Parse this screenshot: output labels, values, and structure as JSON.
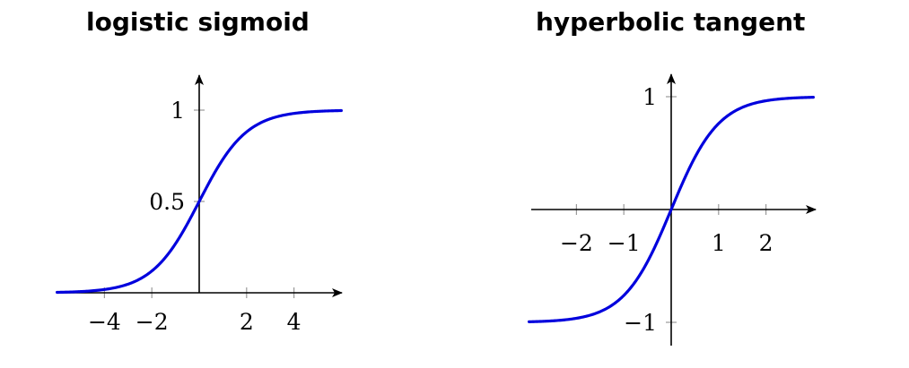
{
  "chart_data": [
    {
      "type": "line",
      "title": "logistic sigmoid",
      "function": "1/(1+exp(-x))",
      "xlim": [
        -6,
        6
      ],
      "ylim": [
        0,
        1.2
      ],
      "x_ticks": [
        -4,
        -2,
        2,
        4
      ],
      "x_tick_labels": [
        "−4",
        "−2",
        "2",
        "4"
      ],
      "y_ticks": [
        0.5,
        1
      ],
      "y_tick_labels": [
        "0.5",
        "1"
      ],
      "series": [
        {
          "color": "#0000dd",
          "x": [
            -6,
            -5.5,
            -5,
            -4.5,
            -4,
            -3.5,
            -3,
            -2.5,
            -2,
            -1.5,
            -1,
            -0.5,
            0,
            0.5,
            1,
            1.5,
            2,
            2.5,
            3,
            3.5,
            4,
            4.5,
            5,
            5.5,
            6
          ],
          "y": [
            0.0025,
            0.0041,
            0.0067,
            0.011,
            0.018,
            0.029,
            0.047,
            0.076,
            0.119,
            0.182,
            0.269,
            0.378,
            0.5,
            0.622,
            0.731,
            0.818,
            0.881,
            0.924,
            0.953,
            0.971,
            0.982,
            0.989,
            0.993,
            0.996,
            0.998
          ]
        }
      ],
      "grid": false,
      "axes_style": "centered-arrows"
    },
    {
      "type": "line",
      "title": "hyperbolic tangent",
      "function": "tanh(x)",
      "xlim": [
        -3,
        3
      ],
      "ylim": [
        -1.2,
        1.2
      ],
      "x_ticks": [
        -2,
        -1,
        1,
        2
      ],
      "x_tick_labels": [
        "−2",
        "−1",
        "1",
        "2"
      ],
      "y_ticks": [
        -1,
        1
      ],
      "y_tick_labels": [
        "−1",
        "1"
      ],
      "series": [
        {
          "color": "#0000dd",
          "x": [
            -3,
            -2.75,
            -2.5,
            -2.25,
            -2,
            -1.75,
            -1.5,
            -1.25,
            -1,
            -0.75,
            -0.5,
            -0.25,
            0,
            0.25,
            0.5,
            0.75,
            1,
            1.25,
            1.5,
            1.75,
            2,
            2.25,
            2.5,
            2.75,
            3
          ],
          "y": [
            -0.995,
            -0.992,
            -0.987,
            -0.978,
            -0.964,
            -0.941,
            -0.905,
            -0.848,
            -0.762,
            -0.635,
            -0.462,
            -0.245,
            0,
            0.245,
            0.462,
            0.635,
            0.762,
            0.848,
            0.905,
            0.941,
            0.964,
            0.978,
            0.987,
            0.992,
            0.995
          ]
        }
      ],
      "grid": false,
      "axes_style": "centered-arrows"
    }
  ]
}
